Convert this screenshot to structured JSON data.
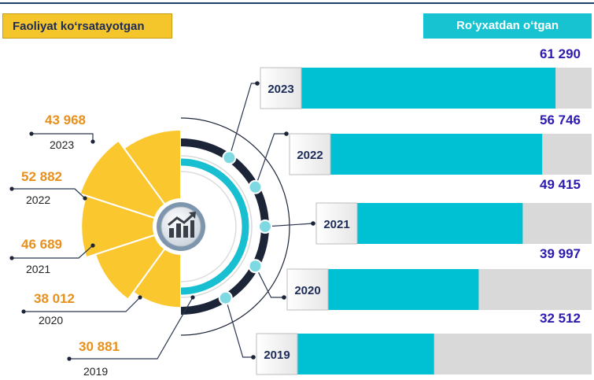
{
  "header": {
    "left_title": "Faoliyat koʻrsatayotgan",
    "right_title": "Roʻyxatdan oʻtgan"
  },
  "chart_data": [
    {
      "type": "bar",
      "orientation": "horizontal",
      "title": "Roʻyxatdan oʻtgan",
      "categories": [
        "2023",
        "2022",
        "2021",
        "2020",
        "2019"
      ],
      "values": [
        61290,
        56746,
        49415,
        39997,
        32512
      ],
      "value_labels": [
        "61 290",
        "56 746",
        "49 415",
        "39 997",
        "32 512"
      ],
      "xlim": [
        0,
        70000
      ]
    },
    {
      "type": "pie",
      "variant": "polar-area-half",
      "title": "Faoliyat koʻrsatayotgan",
      "categories": [
        "2023",
        "2022",
        "2021",
        "2020",
        "2019"
      ],
      "values": [
        43968,
        52882,
        46689,
        38012,
        30881
      ],
      "value_labels": [
        "43 968",
        "52 882",
        "46 689",
        "38 012",
        "30 881"
      ]
    }
  ],
  "colors": {
    "bar_fill": "#00c1d4",
    "bar_track": "#d9d9d9",
    "pie_fill": "#fbc72f",
    "value_text_right": "#2d1bb0",
    "value_text_left": "#e8901c",
    "year_text": "#1c2b57",
    "ring_dark": "#1c2538",
    "ring_cyan": "#18bfd0",
    "dot_fill": "#7fd9e3"
  },
  "icon": "growth-chart-icon"
}
